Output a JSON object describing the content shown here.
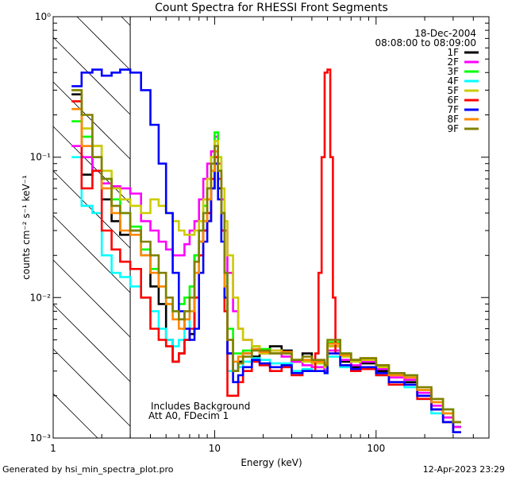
{
  "chart_data": {
    "type": "line",
    "title": "Count Spectra for RHESSI Front Segments",
    "xlabel": "Energy (keV)",
    "ylabel": "counts cm⁻² s⁻¹ keV⁻¹",
    "xscale": "log",
    "yscale": "log",
    "xlim": [
      1,
      500
    ],
    "ylim": [
      0.001,
      1
    ],
    "x_ticks": [
      "1",
      "10",
      "100"
    ],
    "y_ticks": [
      "10⁻³",
      "10⁻²",
      "10⁻¹",
      "10⁰"
    ],
    "date": "18-Dec-2004",
    "time_range": "08:08:00 to 08:09:00",
    "annotations": [
      "Includes Background",
      "Att A0, FDecim 1"
    ],
    "excluded_region": {
      "xmin": 1.0,
      "xmax": 3.0,
      "label": "hatched"
    },
    "legend_position": "top-right",
    "series": [
      {
        "name": "1F",
        "color": "#000000",
        "x": [
          1.3,
          1.5,
          1.75,
          2.0,
          2.3,
          2.6,
          3.0,
          3.5,
          4.0,
          4.5,
          5.0,
          5.5,
          6.0,
          6.5,
          7.0,
          7.5,
          8.0,
          8.5,
          9.0,
          9.5,
          10.0,
          10.5,
          11.0,
          11.5,
          12.0,
          13.0,
          14.0,
          15.0,
          17.0,
          19.0,
          22.0,
          26.0,
          30.0,
          35.0,
          40.0,
          48.0,
          50.0,
          60.0,
          70.0,
          80.0,
          100.0,
          120.0,
          150.0,
          180.0,
          220.0,
          260.0,
          300.0
        ],
        "y": [
          0.28,
          0.075,
          0.12,
          0.05,
          0.035,
          0.028,
          0.03,
          0.02,
          0.012,
          0.009,
          0.005,
          0.0035,
          0.004,
          0.005,
          0.0055,
          0.02,
          0.025,
          0.03,
          0.035,
          0.06,
          0.09,
          0.06,
          0.03,
          0.01,
          0.004,
          0.003,
          0.0035,
          0.004,
          0.0038,
          0.004,
          0.0045,
          0.0042,
          0.0035,
          0.004,
          0.0032,
          0.003,
          0.0045,
          0.0035,
          0.0032,
          0.0034,
          0.003,
          0.0025,
          0.0025,
          0.002,
          0.0016,
          0.0014,
          0.0012
        ]
      },
      {
        "name": "2F",
        "color": "#ff00ff",
        "x": [
          1.3,
          1.5,
          1.75,
          2.0,
          2.3,
          2.6,
          3.0,
          3.5,
          4.0,
          4.5,
          5.0,
          5.5,
          6.0,
          6.5,
          7.0,
          7.5,
          8.0,
          8.5,
          9.0,
          9.5,
          10.0,
          10.5,
          11.0,
          11.5,
          12.0,
          13.0,
          14.0,
          15.0,
          17.0,
          19.0,
          22.0,
          26.0,
          30.0,
          35.0,
          40.0,
          48.0,
          50.0,
          60.0,
          70.0,
          80.0,
          100.0,
          120.0,
          150.0,
          180.0,
          220.0,
          260.0,
          300.0
        ],
        "y": [
          0.12,
          0.1,
          0.08,
          0.065,
          0.062,
          0.06,
          0.055,
          0.035,
          0.03,
          0.025,
          0.022,
          0.02,
          0.02,
          0.024,
          0.03,
          0.035,
          0.05,
          0.07,
          0.09,
          0.11,
          0.14,
          0.09,
          0.05,
          0.03,
          0.015,
          0.008,
          0.006,
          0.005,
          0.0045,
          0.004,
          0.0042,
          0.0038,
          0.0035,
          0.0033,
          0.0032,
          0.003,
          0.0042,
          0.0036,
          0.0033,
          0.0035,
          0.0031,
          0.0027,
          0.0026,
          0.0021,
          0.0017,
          0.0014,
          0.0012
        ]
      },
      {
        "name": "3F",
        "color": "#00ff00",
        "x": [
          1.3,
          1.5,
          1.75,
          2.0,
          2.3,
          2.6,
          3.0,
          3.5,
          4.0,
          4.5,
          5.0,
          5.5,
          6.0,
          6.5,
          7.0,
          7.5,
          8.0,
          8.5,
          9.0,
          9.5,
          10.0,
          10.5,
          11.0,
          11.5,
          12.0,
          13.0,
          14.0,
          15.0,
          17.0,
          19.0,
          22.0,
          26.0,
          30.0,
          35.0,
          40.0,
          48.0,
          50.0,
          60.0,
          70.0,
          80.0,
          100.0,
          120.0,
          150.0,
          180.0,
          220.0,
          260.0,
          300.0
        ],
        "y": [
          0.18,
          0.14,
          0.1,
          0.07,
          0.05,
          0.04,
          0.032,
          0.022,
          0.016,
          0.012,
          0.009,
          0.008,
          0.009,
          0.01,
          0.012,
          0.02,
          0.03,
          0.045,
          0.06,
          0.1,
          0.15,
          0.1,
          0.04,
          0.015,
          0.006,
          0.004,
          0.004,
          0.0042,
          0.0045,
          0.0043,
          0.004,
          0.004,
          0.0036,
          0.0036,
          0.0034,
          0.0033,
          0.0048,
          0.004,
          0.0036,
          0.0036,
          0.0033,
          0.0029,
          0.0028,
          0.0022,
          0.0019,
          0.0016,
          0.0013
        ]
      },
      {
        "name": "4F",
        "color": "#00ffff",
        "x": [
          1.3,
          1.5,
          1.75,
          2.0,
          2.3,
          2.6,
          3.0,
          3.5,
          4.0,
          4.5,
          5.0,
          5.5,
          6.0,
          6.5,
          7.0,
          7.5,
          8.0,
          8.5,
          9.0,
          9.5,
          10.0,
          10.5,
          11.0,
          11.5,
          12.0,
          13.0,
          14.0,
          15.0,
          17.0,
          19.0,
          22.0,
          26.0,
          30.0,
          35.0,
          40.0,
          48.0,
          50.0,
          60.0,
          70.0,
          80.0,
          100.0,
          120.0,
          150.0,
          180.0,
          220.0,
          260.0,
          300.0
        ],
        "y": [
          0.1,
          0.045,
          0.04,
          0.02,
          0.015,
          0.014,
          0.012,
          0.01,
          0.008,
          0.006,
          0.005,
          0.0045,
          0.005,
          0.006,
          0.008,
          0.015,
          0.025,
          0.035,
          0.05,
          0.08,
          0.12,
          0.07,
          0.03,
          0.008,
          0.003,
          0.003,
          0.0032,
          0.0035,
          0.0037,
          0.0036,
          0.0034,
          0.0034,
          0.003,
          0.0031,
          0.003,
          0.0029,
          0.0038,
          0.0032,
          0.003,
          0.0031,
          0.0028,
          0.0024,
          0.0023,
          0.0019,
          0.0015,
          0.0013,
          0.0011
        ]
      },
      {
        "name": "5F",
        "color": "#cccc00",
        "x": [
          1.3,
          1.5,
          1.75,
          2.0,
          2.3,
          2.6,
          3.0,
          3.5,
          4.0,
          4.5,
          5.0,
          5.5,
          6.0,
          6.5,
          7.0,
          7.5,
          8.0,
          8.5,
          9.0,
          9.5,
          10.0,
          10.5,
          11.0,
          11.5,
          12.0,
          13.0,
          14.0,
          15.0,
          17.0,
          19.0,
          22.0,
          26.0,
          30.0,
          35.0,
          40.0,
          48.0,
          50.0,
          60.0,
          70.0,
          80.0,
          100.0,
          120.0,
          150.0,
          180.0,
          220.0,
          260.0,
          300.0
        ],
        "y": [
          0.3,
          0.16,
          0.12,
          0.08,
          0.06,
          0.05,
          0.045,
          0.04,
          0.05,
          0.045,
          0.04,
          0.035,
          0.03,
          0.028,
          0.028,
          0.03,
          0.035,
          0.05,
          0.07,
          0.1,
          0.13,
          0.1,
          0.06,
          0.035,
          0.02,
          0.01,
          0.006,
          0.005,
          0.0045,
          0.004,
          0.0042,
          0.004,
          0.0036,
          0.0035,
          0.0034,
          0.0032,
          0.0045,
          0.0038,
          0.0035,
          0.0036,
          0.0032,
          0.0028,
          0.0027,
          0.0022,
          0.0018,
          0.0015,
          0.0013
        ]
      },
      {
        "name": "6F",
        "color": "#ff0000",
        "x": [
          1.3,
          1.5,
          1.75,
          2.0,
          2.3,
          2.6,
          3.0,
          3.5,
          4.0,
          4.5,
          5.0,
          5.5,
          6.0,
          6.5,
          7.0,
          7.5,
          8.0,
          8.5,
          9.0,
          9.5,
          10.0,
          10.5,
          11.0,
          11.5,
          12.0,
          13.0,
          14.0,
          15.0,
          17.0,
          19.0,
          22.0,
          26.0,
          30.0,
          35.0,
          40.0,
          42.0,
          44.0,
          46.0,
          48.0,
          50.0,
          52.0,
          54.0,
          56.0,
          60.0,
          70.0,
          80.0,
          100.0,
          120.0,
          150.0,
          180.0,
          220.0,
          260.0,
          300.0
        ],
        "y": [
          0.25,
          0.06,
          0.08,
          0.03,
          0.022,
          0.018,
          0.016,
          0.01,
          0.006,
          0.005,
          0.0045,
          0.0035,
          0.004,
          0.005,
          0.006,
          0.01,
          0.02,
          0.03,
          0.04,
          0.07,
          0.1,
          0.07,
          0.03,
          0.008,
          0.002,
          0.002,
          0.0025,
          0.003,
          0.0035,
          0.0033,
          0.003,
          0.0032,
          0.0028,
          0.003,
          0.003,
          0.004,
          0.015,
          0.1,
          0.4,
          0.42,
          0.1,
          0.01,
          0.004,
          0.0033,
          0.003,
          0.0031,
          0.0028,
          0.0024,
          0.0024,
          0.0019,
          0.0016,
          0.0013,
          0.0011
        ]
      },
      {
        "name": "7F",
        "color": "#0000ff",
        "x": [
          1.3,
          1.5,
          1.75,
          2.0,
          2.3,
          2.6,
          3.0,
          3.5,
          4.0,
          4.5,
          5.0,
          5.5,
          6.0,
          6.5,
          7.0,
          7.5,
          8.0,
          8.5,
          9.0,
          9.5,
          10.0,
          10.5,
          11.0,
          11.5,
          12.0,
          13.0,
          14.0,
          15.0,
          17.0,
          19.0,
          22.0,
          26.0,
          30.0,
          35.0,
          40.0,
          48.0,
          50.0,
          60.0,
          70.0,
          80.0,
          100.0,
          120.0,
          150.0,
          180.0,
          220.0,
          260.0,
          300.0
        ],
        "y": [
          0.32,
          0.4,
          0.42,
          0.38,
          0.4,
          0.42,
          0.4,
          0.3,
          0.17,
          0.09,
          0.04,
          0.015,
          0.008,
          0.006,
          0.005,
          0.006,
          0.015,
          0.025,
          0.035,
          0.06,
          0.09,
          0.05,
          0.025,
          0.01,
          0.004,
          0.0025,
          0.0028,
          0.0032,
          0.0036,
          0.0034,
          0.0032,
          0.0033,
          0.0029,
          0.003,
          0.003,
          0.0029,
          0.004,
          0.0033,
          0.0031,
          0.0032,
          0.0029,
          0.0025,
          0.0024,
          0.002,
          0.0016,
          0.0013,
          0.0011
        ]
      },
      {
        "name": "8F",
        "color": "#ff8800",
        "x": [
          1.3,
          1.5,
          1.75,
          2.0,
          2.3,
          2.6,
          3.0,
          3.5,
          4.0,
          4.5,
          5.0,
          5.5,
          6.0,
          6.5,
          7.0,
          7.5,
          8.0,
          8.5,
          9.0,
          9.5,
          10.0,
          10.5,
          11.0,
          11.5,
          12.0,
          13.0,
          14.0,
          15.0,
          17.0,
          19.0,
          22.0,
          26.0,
          30.0,
          35.0,
          40.0,
          48.0,
          50.0,
          60.0,
          70.0,
          80.0,
          100.0,
          120.0,
          150.0,
          180.0,
          220.0,
          260.0,
          300.0
        ],
        "y": [
          0.22,
          0.12,
          0.1,
          0.06,
          0.04,
          0.03,
          0.028,
          0.02,
          0.015,
          0.012,
          0.009,
          0.007,
          0.006,
          0.007,
          0.008,
          0.015,
          0.025,
          0.035,
          0.05,
          0.08,
          0.11,
          0.08,
          0.04,
          0.012,
          0.005,
          0.0035,
          0.0038,
          0.004,
          0.0043,
          0.0041,
          0.004,
          0.0041,
          0.0036,
          0.0036,
          0.0035,
          0.0034,
          0.0047,
          0.0039,
          0.0036,
          0.0037,
          0.0033,
          0.0028,
          0.0027,
          0.0022,
          0.0018,
          0.0015,
          0.0013
        ]
      },
      {
        "name": "9F",
        "color": "#808000",
        "x": [
          1.3,
          1.5,
          1.75,
          2.0,
          2.3,
          2.6,
          3.0,
          3.5,
          4.0,
          4.5,
          5.0,
          5.5,
          6.0,
          6.5,
          7.0,
          7.5,
          8.0,
          8.5,
          9.0,
          9.5,
          10.0,
          10.5,
          11.0,
          11.5,
          12.0,
          13.0,
          14.0,
          15.0,
          17.0,
          19.0,
          22.0,
          26.0,
          30.0,
          35.0,
          40.0,
          48.0,
          50.0,
          60.0,
          70.0,
          80.0,
          100.0,
          120.0,
          150.0,
          180.0,
          220.0,
          260.0,
          300.0
        ],
        "y": [
          0.3,
          0.2,
          0.1,
          0.07,
          0.045,
          0.04,
          0.03,
          0.025,
          0.02,
          0.015,
          0.01,
          0.008,
          0.007,
          0.008,
          0.01,
          0.018,
          0.03,
          0.04,
          0.06,
          0.09,
          0.12,
          0.08,
          0.04,
          0.015,
          0.005,
          0.003,
          0.0034,
          0.0038,
          0.0042,
          0.0042,
          0.004,
          0.004,
          0.0036,
          0.0038,
          0.0036,
          0.0033,
          0.005,
          0.004,
          0.0036,
          0.0037,
          0.0033,
          0.0029,
          0.0028,
          0.0023,
          0.0019,
          0.0016,
          0.0013
        ]
      }
    ]
  },
  "footer": {
    "generated_by": "Generated by hsi_min_spectra_plot.pro",
    "timestamp": "12-Apr-2023 23:29"
  }
}
